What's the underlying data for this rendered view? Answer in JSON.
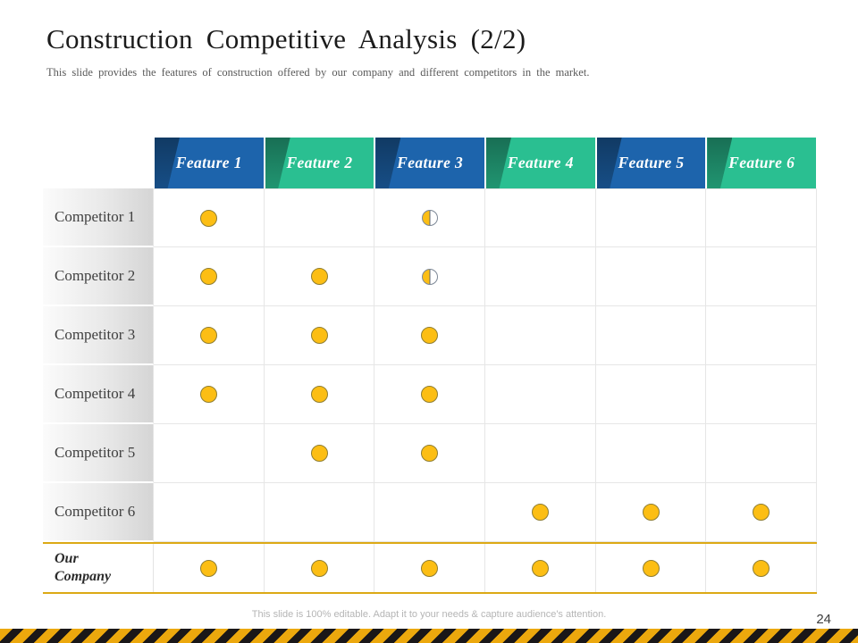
{
  "slide": {
    "title": "Construction Competitive Analysis (2/2)",
    "subtitle": "This slide provides the features of construction offered by our company and different competitors in the market.",
    "footer_note": "This slide is 100% editable. Adapt it to your needs & capture audience's attention.",
    "page_number": "24"
  },
  "colors": {
    "header_blue": "#1d64ac",
    "header_green": "#2abf91",
    "wedge_shade": "rgba(0,0,0,0.42)",
    "dot_fill": "#fcbe14",
    "dot_border": "#8f7e33",
    "half_dot_border": "#7d8896",
    "gold_line": "#dca915",
    "hazard_yellow": "#eca80d",
    "hazard_black": "#1a1718"
  },
  "table": {
    "features": [
      {
        "label": "Feature 1",
        "color": "blue"
      },
      {
        "label": "Feature 2",
        "color": "green"
      },
      {
        "label": "Feature 3",
        "color": "blue"
      },
      {
        "label": "Feature 4",
        "color": "green"
      },
      {
        "label": "Feature 5",
        "color": "blue"
      },
      {
        "label": "Feature 6",
        "color": "green"
      }
    ],
    "rows": [
      {
        "label": "Competitor 1",
        "emphasis": false,
        "cells": [
          "full",
          "",
          "half",
          "",
          "",
          ""
        ]
      },
      {
        "label": "Competitor 2",
        "emphasis": false,
        "cells": [
          "full",
          "full",
          "half",
          "",
          "",
          ""
        ]
      },
      {
        "label": "Competitor 3",
        "emphasis": false,
        "cells": [
          "full",
          "full",
          "full",
          "",
          "",
          ""
        ]
      },
      {
        "label": "Competitor 4",
        "emphasis": false,
        "cells": [
          "full",
          "full",
          "full",
          "",
          "",
          ""
        ]
      },
      {
        "label": "Competitor 5",
        "emphasis": false,
        "cells": [
          "",
          "full",
          "full",
          "",
          "",
          ""
        ]
      },
      {
        "label": "Competitor 6",
        "emphasis": false,
        "cells": [
          "",
          "",
          "",
          "full",
          "full",
          "full"
        ]
      },
      {
        "label": "Our Company",
        "emphasis": true,
        "cells": [
          "full",
          "full",
          "full",
          "full",
          "full",
          "full"
        ]
      }
    ]
  }
}
